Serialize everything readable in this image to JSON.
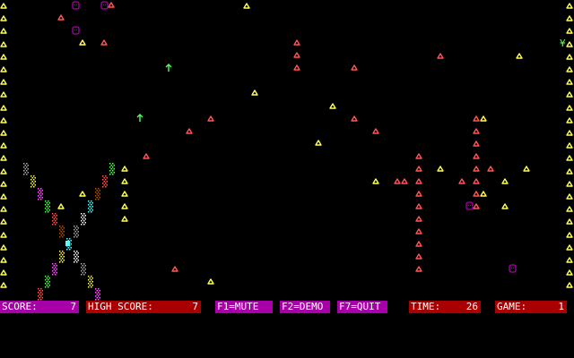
{
  "colors": {
    "background": "#000000",
    "border_mushroom": "#ffff55",
    "mushroom_yellow": "#ffff55",
    "mushroom_red": "#ff5555",
    "ghost": "#a800a8",
    "arrow": "#55ff55",
    "bar_magenta": "#a800a8",
    "bar_red": "#a80000",
    "bar_text": "#ffffff"
  },
  "status": {
    "score_label": "SCORE:",
    "score_value": "7",
    "high_score_label": "HIGH SCORE:",
    "high_score_value": "7",
    "mute_key": "F1=MUTE",
    "demo_key": "F2=DEMO",
    "quit_key": "F7=QUIT",
    "time_label": "TIME:",
    "time_value": "26",
    "game_label": "GAME:",
    "game_value": "1"
  },
  "icons": {
    "mushroom": "triangle-mushroom-icon",
    "ghost": "ghost-face-icon",
    "arrow": "up-arrow-icon",
    "yen": "yen-symbol-icon",
    "player": "player-shooter-icon"
  },
  "yen_glyph": "¥"
}
